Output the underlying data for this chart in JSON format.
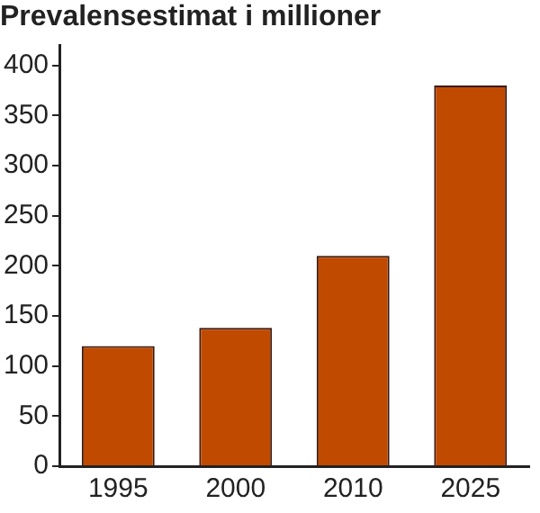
{
  "chart_data": {
    "type": "bar",
    "ylabel": "Prevalensestimat i millioner",
    "categories": [
      "1995",
      "2000",
      "2010",
      "2025"
    ],
    "values": [
      120,
      138,
      210,
      380
    ],
    "color": "#c04a00",
    "ylim": [
      0,
      420
    ],
    "yticks": [
      0,
      50,
      100,
      150,
      200,
      250,
      300,
      350,
      400
    ],
    "grid": false,
    "legend": false
  }
}
